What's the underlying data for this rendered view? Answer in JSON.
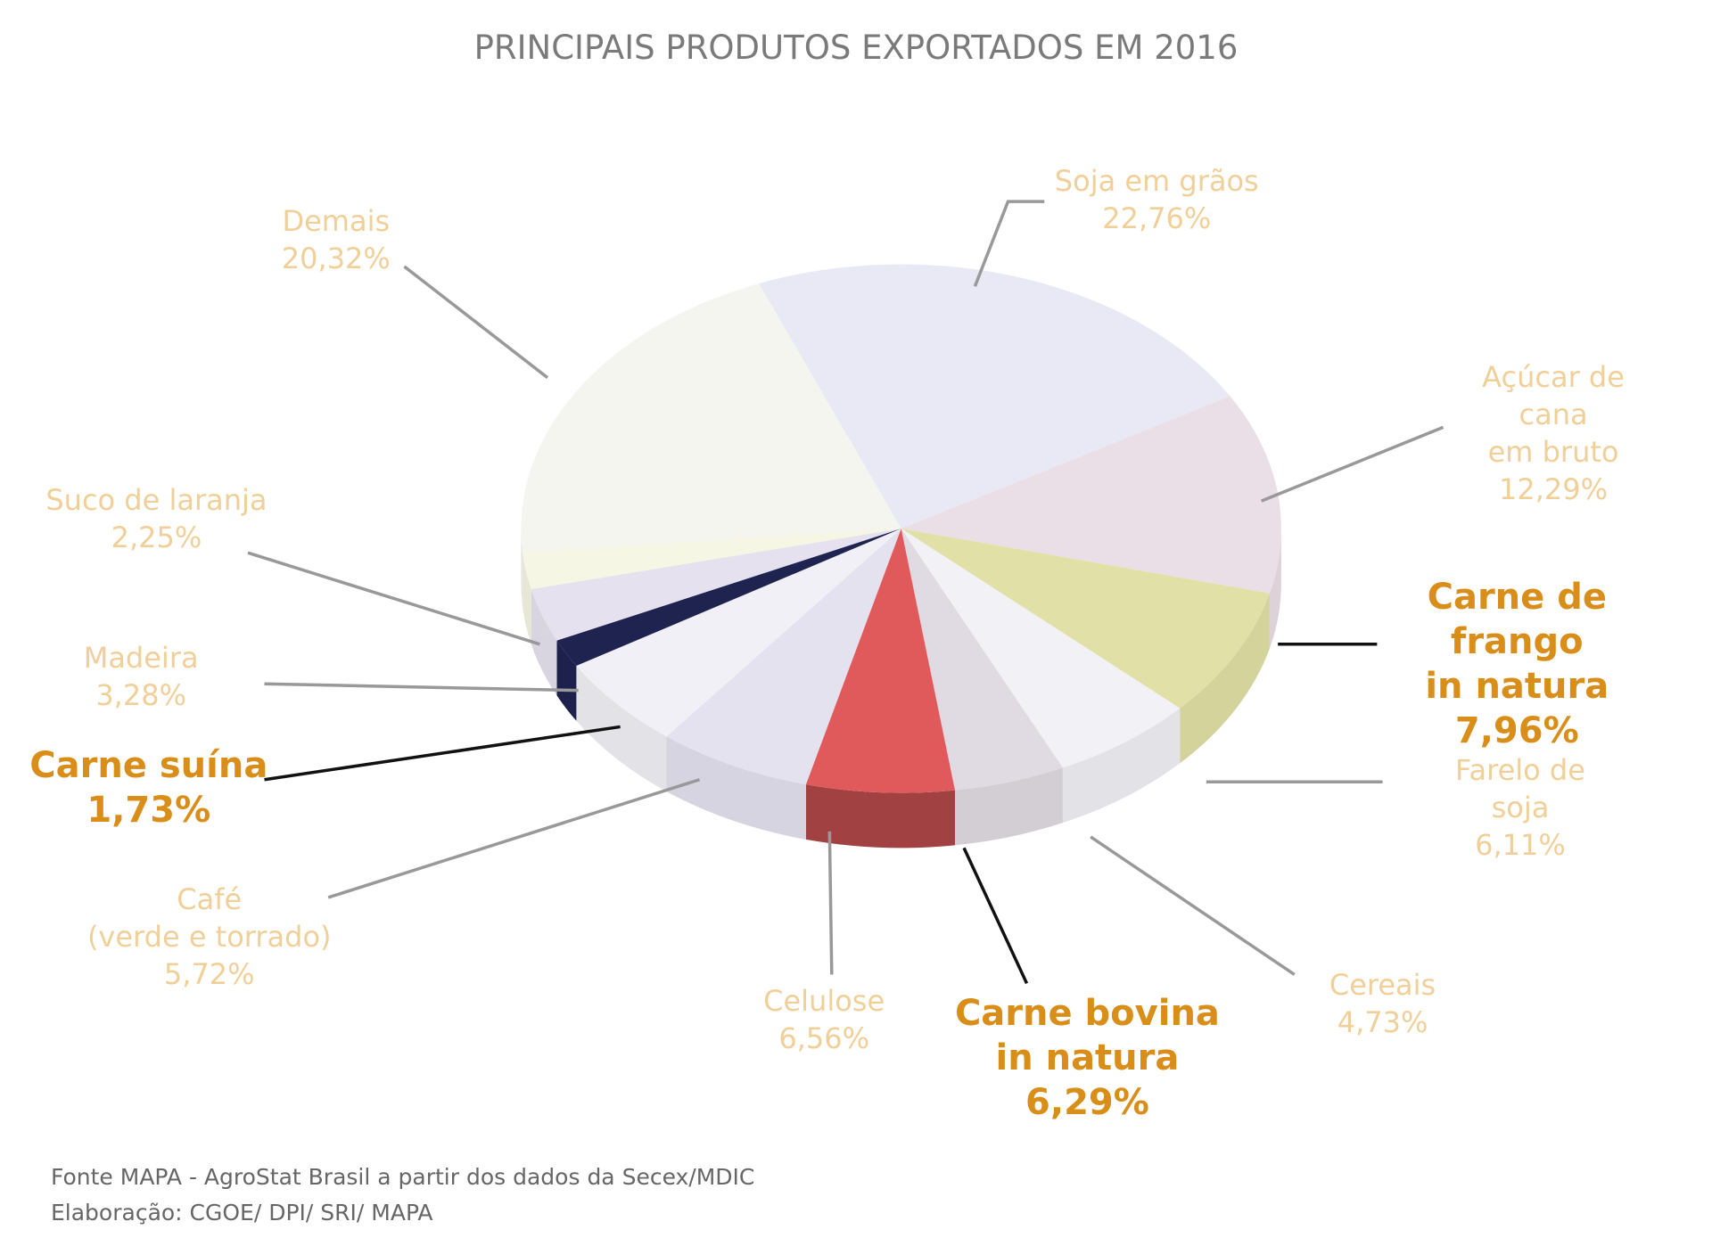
{
  "chart_data": {
    "type": "pie3d",
    "title": "PRINCIPAIS PRODUTOS EXPORTADOS EM 2016",
    "categories": [
      "Soja em grãos",
      "Açúcar de cana\nem bruto",
      "Carne de frango\nin natura",
      "Farelo de soja",
      "Cereais",
      "Carne bovina\nin natura",
      "Celulose",
      "Café\n(verde e torrado)",
      "Carne suína",
      "Madeira",
      "Suco de laranja",
      "Demais"
    ],
    "values": [
      22.76,
      12.29,
      7.96,
      6.11,
      4.73,
      6.29,
      6.56,
      5.72,
      1.73,
      3.28,
      2.25,
      20.32
    ],
    "value_labels": [
      "22,76%",
      "12,29%",
      "7,96%",
      "6,11%",
      "4,73%",
      "6,29%",
      "6,56%",
      "5,72%",
      "1,73%",
      "3,28%",
      "2,25%",
      "20,32%"
    ],
    "colors": [
      "#e9e9f5",
      "#eadfe6",
      "#e1e0a6",
      "#f1f1f6",
      "#e0dbe2",
      "#e05a5c",
      "#e3e2ee",
      "#f0f0f6",
      "#1f2350",
      "#e6e1ee",
      "#f6f6e4",
      "#f4f5ee"
    ],
    "label_colors": [
      "#f0cf98",
      "#f0cf98",
      "#d98e1a",
      "#f0cf98",
      "#f0cf98",
      "#d98e1a",
      "#f0cf98",
      "#f0cf98",
      "#d98e1a",
      "#f0cf98",
      "#f0cf98",
      "#f0cf98"
    ],
    "notes": [
      "Fonte MAPA - AgroStat Brasil a partir dos dados da Secex/MDIC",
      "Elaboração: CGOE/ DPI/ SRI/ MAPA"
    ]
  }
}
